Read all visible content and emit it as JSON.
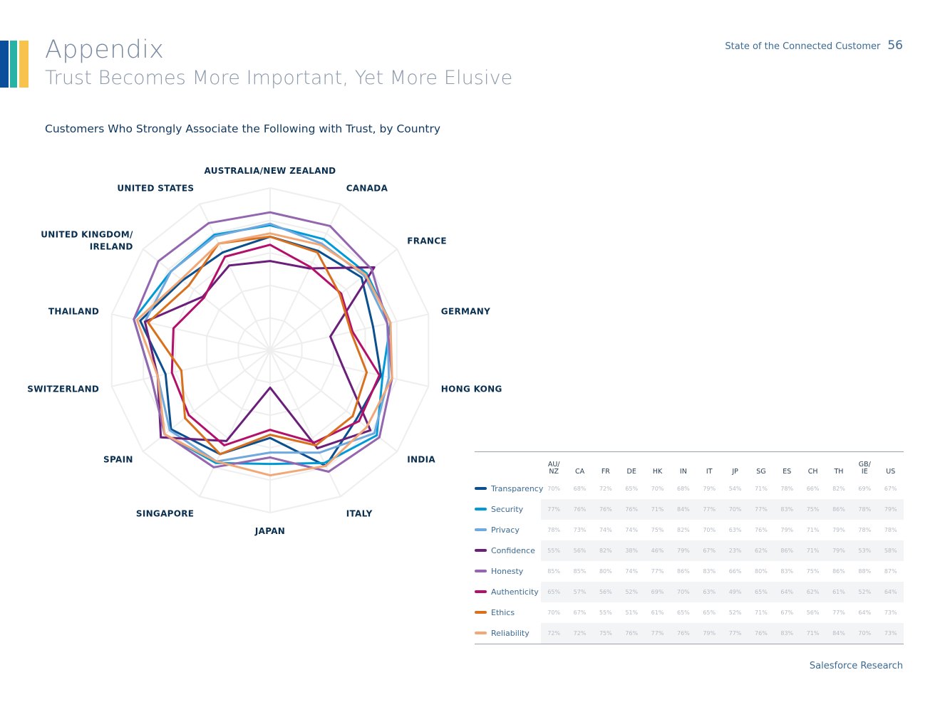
{
  "header": {
    "title": "Appendix",
    "subtitle": "Trust Becomes More Important, Yet More Elusive",
    "report_name": "State of the Connected Customer",
    "page_number": "56",
    "brand_colors": [
      "#0b4f9c",
      "#ffffff",
      "#26b3a6",
      "#ffffff",
      "#7fbbe7",
      "#ffffff",
      "#f7c34c"
    ]
  },
  "footer": {
    "text": "Salesforce Research"
  },
  "chart_data": {
    "type": "radar",
    "title": "Customers Who Strongly Associate the Following with Trust, by Country",
    "axes": [
      {
        "code": "AU/NZ",
        "label_lines": [
          "AUSTRALIA/NEW ZEALAND"
        ]
      },
      {
        "code": "CA",
        "label_lines": [
          "CANADA"
        ]
      },
      {
        "code": "FR",
        "label_lines": [
          "FRANCE"
        ]
      },
      {
        "code": "DE",
        "label_lines": [
          "GERMANY"
        ]
      },
      {
        "code": "HK",
        "label_lines": [
          "HONG KONG"
        ]
      },
      {
        "code": "IN",
        "label_lines": [
          "INDIA"
        ]
      },
      {
        "code": "IT",
        "label_lines": [
          "ITALY"
        ]
      },
      {
        "code": "JP",
        "label_lines": [
          "JAPAN"
        ]
      },
      {
        "code": "SG",
        "label_lines": [
          "SINGAPORE"
        ]
      },
      {
        "code": "ES",
        "label_lines": [
          "SPAIN"
        ]
      },
      {
        "code": "CH",
        "label_lines": [
          "SWITZERLAND"
        ]
      },
      {
        "code": "TH",
        "label_lines": [
          "THAILAND"
        ]
      },
      {
        "code": "GB/IE",
        "label_lines": [
          "UNITED KINGDOM/",
          "IRELAND"
        ]
      },
      {
        "code": "US",
        "label_lines": [
          "UNITED STATES"
        ]
      }
    ],
    "series": [
      {
        "name": "Transparency",
        "color": "#0c4f8f",
        "values": [
          70,
          68,
          72,
          65,
          70,
          68,
          79,
          54,
          71,
          78,
          66,
          82,
          69,
          67
        ],
        "labels": [
          "70%",
          "68%",
          "72%",
          "65%",
          "70%",
          "68%",
          "79%",
          "54%",
          "71%",
          "78%",
          "66%",
          "82%",
          "69%",
          "67%"
        ]
      },
      {
        "name": "Security",
        "color": "#009ad8",
        "values": [
          77,
          76,
          76,
          76,
          71,
          84,
          77,
          70,
          77,
          83,
          75,
          86,
          78,
          79
        ],
        "labels": [
          "77%",
          "76%",
          "76%",
          "76%",
          "71%",
          "84%",
          "77%",
          "70%",
          "77%",
          "83%",
          "75%",
          "86%",
          "78%",
          "79%"
        ]
      },
      {
        "name": "Privacy",
        "color": "#6fa9dd",
        "values": [
          78,
          73,
          74,
          74,
          75,
          82,
          70,
          63,
          76,
          79,
          71,
          79,
          78,
          78
        ],
        "labels": [
          "78%",
          "73%",
          "74%",
          "74%",
          "75%",
          "82%",
          "70%",
          "63%",
          "76%",
          "79%",
          "71%",
          "79%",
          "78%",
          "78%"
        ]
      },
      {
        "name": "Confidence",
        "color": "#6a1f7a",
        "values": [
          55,
          56,
          82,
          38,
          46,
          79,
          67,
          23,
          62,
          86,
          71,
          79,
          53,
          58
        ],
        "labels": [
          "55%",
          "56%",
          "82%",
          "38%",
          "46%",
          "79%",
          "67%",
          "23%",
          "62%",
          "86%",
          "71%",
          "79%",
          "53%",
          "58%"
        ]
      },
      {
        "name": "Honesty",
        "color": "#9466b0",
        "values": [
          85,
          85,
          80,
          74,
          77,
          86,
          83,
          66,
          80,
          83,
          75,
          86,
          88,
          87
        ],
        "labels": [
          "85%",
          "85%",
          "80%",
          "74%",
          "77%",
          "86%",
          "83%",
          "66%",
          "80%",
          "83%",
          "75%",
          "86%",
          "88%",
          "87%"
        ]
      },
      {
        "name": "Authenticity",
        "color": "#b3106a",
        "values": [
          65,
          57,
          56,
          52,
          69,
          70,
          63,
          49,
          65,
          64,
          62,
          61,
          52,
          64
        ],
        "labels": [
          "65%",
          "57%",
          "56%",
          "52%",
          "69%",
          "70%",
          "63%",
          "49%",
          "65%",
          "64%",
          "62%",
          "61%",
          "52%",
          "64%"
        ]
      },
      {
        "name": "Ethics",
        "color": "#d9701e",
        "values": [
          70,
          67,
          55,
          51,
          61,
          65,
          65,
          52,
          71,
          67,
          56,
          77,
          64,
          73
        ],
        "labels": [
          "70%",
          "67%",
          "55%",
          "51%",
          "61%",
          "65%",
          "65%",
          "52%",
          "71%",
          "67%",
          "56%",
          "77%",
          "64%",
          "73%"
        ]
      },
      {
        "name": "Reliability",
        "color": "#f2a876",
        "values": [
          72,
          72,
          75,
          76,
          77,
          76,
          79,
          77,
          76,
          83,
          71,
          84,
          70,
          73
        ],
        "labels": [
          "72%",
          "72%",
          "75%",
          "76%",
          "77%",
          "76%",
          "79%",
          "77%",
          "76%",
          "83%",
          "71%",
          "84%",
          "70%",
          "73%"
        ]
      }
    ],
    "rmax": 100,
    "grid_levels": [
      20,
      40,
      60,
      80,
      100
    ]
  }
}
